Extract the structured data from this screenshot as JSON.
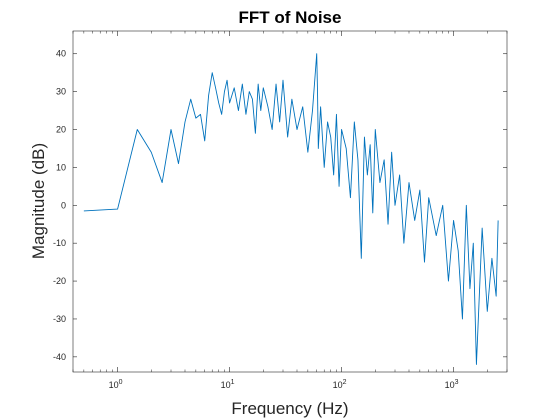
{
  "chart_data": {
    "type": "line",
    "title": "FFT of Noise",
    "xlabel": "Frequency (Hz)",
    "ylabel": "Magnitude (dB)",
    "x_scale": "log",
    "xlim": [
      0.4,
      3000
    ],
    "ylim": [
      -44,
      46
    ],
    "x_ticks": [
      {
        "value": 1,
        "base": "10",
        "exp": "0"
      },
      {
        "value": 10,
        "base": "10",
        "exp": "1"
      },
      {
        "value": 100,
        "base": "10",
        "exp": "2"
      },
      {
        "value": 1000,
        "base": "10",
        "exp": "3"
      }
    ],
    "y_ticks": [
      -40,
      -30,
      -20,
      -10,
      0,
      10,
      20,
      30,
      40
    ],
    "grid": false,
    "line_color": "#0072BD",
    "series": [
      {
        "x": [
          0.5,
          1,
          1.5,
          2,
          2.5,
          3,
          3.5,
          4,
          4.5,
          5,
          5.5,
          6,
          6.5,
          7,
          7.5,
          8,
          8.5,
          9,
          9.5,
          10,
          11,
          12,
          13,
          14,
          15,
          16,
          17,
          18,
          19,
          20,
          22,
          24,
          26,
          28,
          30,
          33,
          36,
          40,
          45,
          50,
          55,
          60,
          61,
          62,
          65,
          70,
          75,
          80,
          85,
          90,
          95,
          100,
          110,
          120,
          130,
          140,
          150,
          160,
          170,
          180,
          190,
          200,
          220,
          240,
          260,
          280,
          300,
          330,
          360,
          400,
          450,
          500,
          550,
          600,
          700,
          800,
          900,
          1000,
          1100,
          1200,
          1300,
          1400,
          1500,
          1600,
          1800,
          2000,
          2200,
          2400,
          2500
        ],
        "y": [
          -1.5,
          -1,
          20,
          14,
          6,
          20,
          11,
          22,
          28,
          23,
          24,
          17,
          29,
          35,
          31,
          27,
          24,
          30,
          33,
          27,
          31,
          25,
          32,
          24,
          30,
          28,
          19,
          32,
          25,
          31,
          26,
          20,
          32,
          22,
          33,
          18,
          28,
          20,
          26,
          14,
          25,
          40,
          30,
          15,
          26,
          10,
          22,
          18,
          8,
          24,
          5,
          20,
          15,
          2,
          22,
          12,
          -14,
          18,
          8,
          16,
          -2,
          20,
          6,
          12,
          -5,
          14,
          0,
          8,
          -10,
          6,
          -4,
          4,
          -15,
          2,
          -8,
          0,
          -20,
          -4,
          -12,
          -30,
          0,
          -22,
          -10,
          -42,
          -6,
          -28,
          -14,
          -24,
          -4
        ]
      }
    ]
  }
}
